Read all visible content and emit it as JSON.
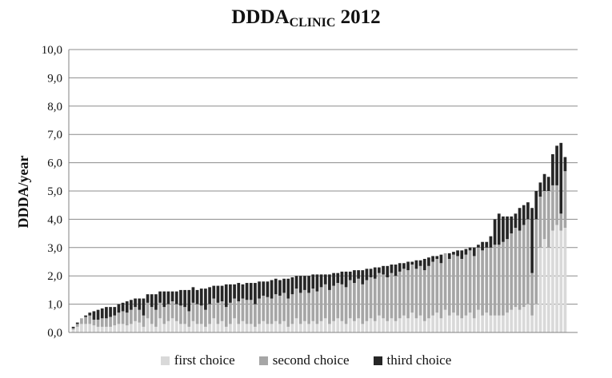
{
  "chart_data": {
    "type": "bar",
    "stacked": true,
    "title": "DDDA",
    "title_sub": "CLINIC",
    "title_suffix": " 2012",
    "xlabel": "",
    "ylabel": "DDDA/year",
    "ylim": [
      0,
      10
    ],
    "yticks": [
      "0,0",
      "1,0",
      "2,0",
      "3,0",
      "4,0",
      "5,0",
      "6,0",
      "7,0",
      "8,0",
      "9,0",
      "10,0"
    ],
    "grid": true,
    "legend_position": "bottom",
    "colors": {
      "first": "#d9d9d9",
      "second": "#a6a6a6",
      "third": "#262626",
      "grid": "#8c8c8c",
      "axis": "#808080"
    },
    "series": [
      {
        "name": "first choice",
        "values": [
          0.1,
          0.2,
          0.3,
          0.3,
          0.3,
          0.25,
          0.2,
          0.2,
          0.2,
          0.2,
          0.25,
          0.3,
          0.3,
          0.25,
          0.3,
          0.4,
          0.35,
          0.2,
          0.5,
          0.3,
          0.2,
          0.5,
          0.3,
          0.4,
          0.5,
          0.4,
          0.3,
          0.3,
          0.2,
          0.4,
          0.3,
          0.3,
          0.2,
          0.3,
          0.5,
          0.3,
          0.4,
          0.2,
          0.3,
          0.5,
          0.3,
          0.4,
          0.3,
          0.3,
          0.2,
          0.3,
          0.4,
          0.3,
          0.3,
          0.4,
          0.3,
          0.4,
          0.2,
          0.3,
          0.5,
          0.3,
          0.4,
          0.3,
          0.4,
          0.3,
          0.4,
          0.5,
          0.3,
          0.4,
          0.5,
          0.4,
          0.3,
          0.5,
          0.4,
          0.5,
          0.3,
          0.4,
          0.5,
          0.4,
          0.6,
          0.5,
          0.4,
          0.5,
          0.4,
          0.5,
          0.6,
          0.5,
          0.7,
          0.5,
          0.6,
          0.4,
          0.5,
          0.6,
          0.7,
          0.5,
          0.8,
          0.6,
          0.7,
          0.6,
          0.5,
          0.6,
          0.7,
          0.5,
          0.8,
          0.6,
          0.7,
          0.6,
          0.6,
          0.6,
          0.6,
          0.7,
          0.8,
          0.9,
          0.8,
          0.9,
          1.0,
          0.6,
          1.0,
          3.0,
          3.3,
          3.0,
          3.6,
          3.8,
          3.6,
          3.7
        ]
      },
      {
        "name": "second choice",
        "values": [
          0.05,
          0.1,
          0.2,
          0.25,
          0.3,
          0.2,
          0.25,
          0.3,
          0.3,
          0.35,
          0.35,
          0.4,
          0.45,
          0.45,
          0.5,
          0.5,
          0.45,
          0.4,
          0.55,
          0.6,
          0.6,
          0.55,
          0.6,
          0.6,
          0.6,
          0.6,
          0.65,
          0.6,
          0.55,
          0.65,
          0.7,
          0.65,
          0.6,
          0.7,
          0.7,
          0.75,
          0.7,
          0.7,
          0.75,
          0.7,
          0.8,
          0.8,
          0.85,
          0.85,
          0.8,
          0.9,
          0.9,
          0.95,
          0.9,
          0.95,
          1.0,
          1.0,
          1.0,
          1.05,
          1.05,
          1.1,
          1.1,
          1.1,
          1.15,
          1.15,
          1.2,
          1.2,
          1.2,
          1.25,
          1.25,
          1.3,
          1.3,
          1.35,
          1.35,
          1.4,
          1.4,
          1.45,
          1.45,
          1.5,
          1.5,
          1.55,
          1.55,
          1.6,
          1.6,
          1.65,
          1.65,
          1.7,
          1.7,
          1.75,
          1.75,
          1.8,
          1.85,
          1.9,
          1.9,
          1.95,
          2.0,
          2.0,
          2.05,
          2.1,
          2.1,
          2.15,
          2.2,
          2.2,
          2.2,
          2.3,
          2.3,
          2.4,
          2.5,
          2.5,
          2.6,
          2.6,
          2.7,
          2.8,
          2.8,
          2.9,
          3.0,
          1.5,
          3.0,
          1.8,
          1.7,
          2.0,
          1.6,
          1.4,
          0.6,
          2.0
        ]
      },
      {
        "name": "third choice",
        "values": [
          0.05,
          0.05,
          0.0,
          0.05,
          0.1,
          0.3,
          0.35,
          0.35,
          0.4,
          0.35,
          0.3,
          0.3,
          0.3,
          0.4,
          0.35,
          0.3,
          0.4,
          0.6,
          0.3,
          0.45,
          0.55,
          0.4,
          0.55,
          0.45,
          0.35,
          0.45,
          0.55,
          0.6,
          0.75,
          0.55,
          0.5,
          0.6,
          0.75,
          0.6,
          0.45,
          0.6,
          0.55,
          0.8,
          0.65,
          0.5,
          0.65,
          0.5,
          0.6,
          0.6,
          0.75,
          0.6,
          0.5,
          0.55,
          0.65,
          0.55,
          0.55,
          0.5,
          0.7,
          0.6,
          0.45,
          0.6,
          0.5,
          0.6,
          0.5,
          0.6,
          0.45,
          0.35,
          0.55,
          0.45,
          0.35,
          0.45,
          0.55,
          0.3,
          0.45,
          0.3,
          0.5,
          0.4,
          0.3,
          0.4,
          0.2,
          0.3,
          0.4,
          0.3,
          0.4,
          0.3,
          0.2,
          0.3,
          0.1,
          0.3,
          0.2,
          0.4,
          0.3,
          0.2,
          0.1,
          0.3,
          0.0,
          0.2,
          0.1,
          0.2,
          0.3,
          0.2,
          0.1,
          0.3,
          0.1,
          0.3,
          0.2,
          0.4,
          0.9,
          1.1,
          0.9,
          0.8,
          0.6,
          0.5,
          0.8,
          0.7,
          0.6,
          2.3,
          1.0,
          0.5,
          0.6,
          0.5,
          1.1,
          1.4,
          2.5,
          0.5
        ]
      }
    ]
  },
  "legend": {
    "first": "first choice",
    "second": "second choice",
    "third": "third choice"
  }
}
